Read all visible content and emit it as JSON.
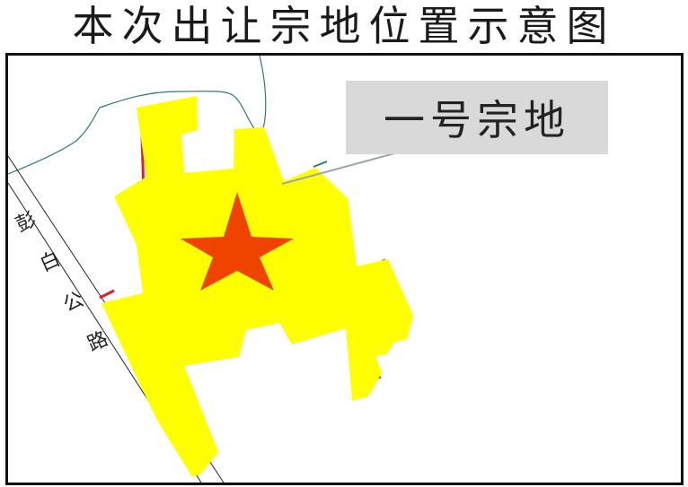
{
  "title": "本次出让宗地位置示意图",
  "callout": {
    "label": "一号宗地"
  },
  "road": {
    "chars": [
      "彭",
      "白",
      "公",
      "路"
    ]
  },
  "colors": {
    "parcel": "#ffff00",
    "parcel_edge": "#e02020",
    "star": "#ee4400",
    "river": "#2e7a78",
    "callout_bg": "#d9d9d9"
  },
  "icons": {
    "marker": "star-icon"
  }
}
